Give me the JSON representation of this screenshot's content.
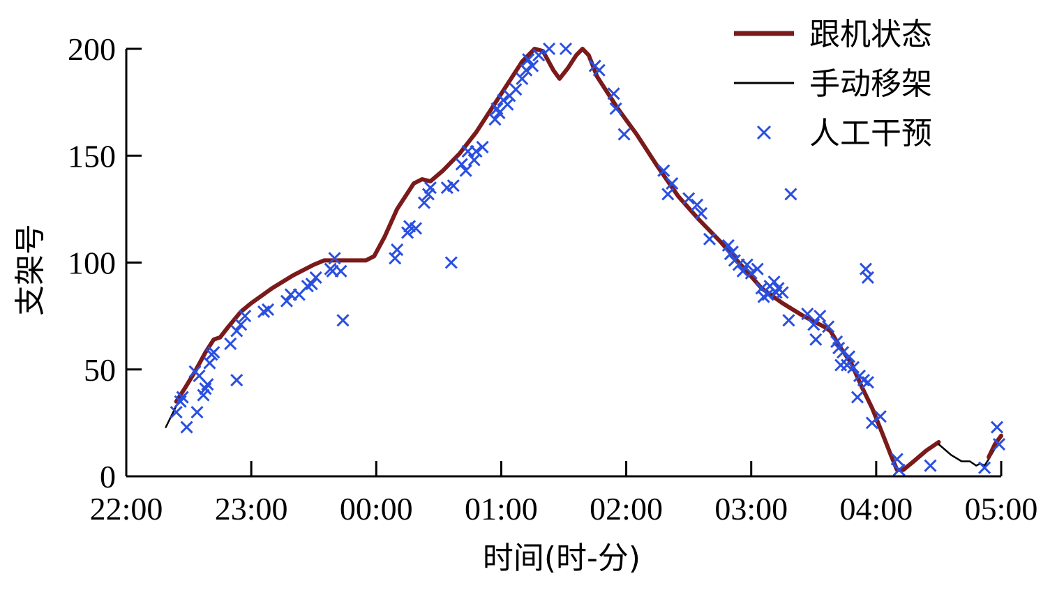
{
  "chart_data": {
    "type": "line",
    "xlabel": "时间(时-分)",
    "ylabel": "支架号",
    "xlim": [
      0,
      420
    ],
    "ylim": [
      0,
      200
    ],
    "x_ticks": [
      {
        "value": 0,
        "label": "22:00"
      },
      {
        "value": 60,
        "label": "23:00"
      },
      {
        "value": 120,
        "label": "00:00"
      },
      {
        "value": 180,
        "label": "01:00"
      },
      {
        "value": 240,
        "label": "02:00"
      },
      {
        "value": 300,
        "label": "03:00"
      },
      {
        "value": 360,
        "label": "04:00"
      },
      {
        "value": 420,
        "label": "05:00"
      }
    ],
    "y_ticks": [
      0,
      50,
      100,
      150,
      200
    ],
    "legend_position": "top-right",
    "series": [
      {
        "name": "跟机状态",
        "color": "#7b1a1a",
        "style": "line",
        "points": [
          [
            24,
            35
          ],
          [
            28,
            41
          ],
          [
            33,
            49
          ],
          [
            38,
            58
          ],
          [
            42,
            64
          ],
          [
            45,
            65
          ],
          [
            49,
            70
          ],
          [
            55,
            77
          ],
          [
            60,
            81
          ],
          [
            70,
            88
          ],
          [
            80,
            94
          ],
          [
            90,
            99
          ],
          [
            95,
            101
          ],
          [
            105,
            101
          ],
          [
            110,
            101
          ],
          [
            115,
            101
          ],
          [
            119,
            103
          ],
          [
            124,
            112
          ],
          [
            130,
            125
          ],
          [
            138,
            137
          ],
          [
            142,
            139
          ],
          [
            146,
            138
          ],
          [
            152,
            143
          ],
          [
            160,
            151
          ],
          [
            168,
            161
          ],
          [
            176,
            173
          ],
          [
            184,
            185
          ],
          [
            190,
            194
          ],
          [
            196,
            200
          ],
          [
            200,
            199
          ],
          [
            205,
            190
          ],
          [
            208,
            186
          ],
          [
            212,
            191
          ],
          [
            216,
            197
          ],
          [
            219,
            200
          ],
          [
            222,
            197
          ],
          [
            226,
            187
          ],
          [
            230,
            181
          ],
          [
            236,
            172
          ],
          [
            245,
            160
          ],
          [
            255,
            145
          ],
          [
            265,
            131
          ],
          [
            275,
            120
          ],
          [
            285,
            110
          ],
          [
            295,
            99
          ],
          [
            305,
            88
          ],
          [
            315,
            81
          ],
          [
            325,
            75
          ],
          [
            335,
            70
          ],
          [
            338,
            68
          ],
          [
            343,
            60
          ],
          [
            348,
            53
          ],
          [
            353,
            42
          ],
          [
            358,
            32
          ],
          [
            363,
            20
          ],
          [
            367,
            10
          ],
          [
            370,
            3
          ],
          [
            373,
            3
          ],
          [
            378,
            7
          ],
          [
            384,
            12
          ],
          [
            390,
            16
          ]
        ]
      },
      {
        "name": "手动移架",
        "color": "#000000",
        "style": "line",
        "points": [
          [
            19,
            23
          ],
          [
            24,
            33
          ]
        ]
      },
      {
        "name": "手动移架",
        "color": "#000000",
        "style": "line",
        "points": [
          [
            390,
            15
          ],
          [
            396,
            10
          ],
          [
            401,
            7
          ],
          [
            405,
            7
          ],
          [
            408,
            5
          ],
          [
            410,
            6
          ],
          [
            412,
            5
          ],
          [
            414,
            8
          ],
          [
            417,
            13
          ],
          [
            420,
            16
          ]
        ]
      },
      {
        "name": "跟机状态",
        "color": "#7b1a1a",
        "style": "line",
        "points": [
          [
            414,
            9
          ],
          [
            417,
            15
          ],
          [
            420,
            19
          ]
        ]
      },
      {
        "name": "人工干预",
        "color": "#2a4fe0",
        "style": "marker",
        "points": [
          [
            24,
            30
          ],
          [
            26,
            35
          ],
          [
            27,
            37
          ],
          [
            29,
            23
          ],
          [
            33,
            49
          ],
          [
            34,
            30
          ],
          [
            35,
            47
          ],
          [
            37,
            38
          ],
          [
            38,
            41
          ],
          [
            39,
            43
          ],
          [
            40,
            53
          ],
          [
            41,
            57
          ],
          [
            42,
            58
          ],
          [
            53,
            45
          ],
          [
            50,
            62
          ],
          [
            53,
            68
          ],
          [
            55,
            71
          ],
          [
            57,
            75
          ],
          [
            66,
            77
          ],
          [
            68,
            78
          ],
          [
            77,
            82
          ],
          [
            79,
            85
          ],
          [
            83,
            85
          ],
          [
            87,
            89
          ],
          [
            89,
            90
          ],
          [
            91,
            93
          ],
          [
            98,
            97
          ],
          [
            99,
            96
          ],
          [
            100,
            102
          ],
          [
            103,
            96
          ],
          [
            104,
            73
          ],
          [
            129,
            102
          ],
          [
            130,
            106
          ],
          [
            135,
            114
          ],
          [
            136,
            117
          ],
          [
            139,
            116
          ],
          [
            143,
            128
          ],
          [
            145,
            132
          ],
          [
            146,
            135
          ],
          [
            154,
            135
          ],
          [
            157,
            136
          ],
          [
            156,
            100
          ],
          [
            161,
            146
          ],
          [
            163,
            143
          ],
          [
            164,
            152
          ],
          [
            167,
            148
          ],
          [
            168,
            152
          ],
          [
            171,
            154
          ],
          [
            177,
            167
          ],
          [
            178,
            172
          ],
          [
            179,
            170
          ],
          [
            181,
            176
          ],
          [
            183,
            174
          ],
          [
            184,
            178
          ],
          [
            187,
            181
          ],
          [
            190,
            186
          ],
          [
            192,
            190
          ],
          [
            193,
            195
          ],
          [
            195,
            192
          ],
          [
            198,
            197
          ],
          [
            203,
            200
          ],
          [
            211,
            200
          ],
          [
            225,
            192
          ],
          [
            227,
            190
          ],
          [
            234,
            179
          ],
          [
            235,
            172
          ],
          [
            239,
            160
          ],
          [
            258,
            143
          ],
          [
            260,
            132
          ],
          [
            262,
            137
          ],
          [
            270,
            130
          ],
          [
            274,
            127
          ],
          [
            276,
            123
          ],
          [
            280,
            111
          ],
          [
            289,
            108
          ],
          [
            291,
            105
          ],
          [
            292,
            101
          ],
          [
            290,
            104
          ],
          [
            294,
            99
          ],
          [
            296,
            96
          ],
          [
            298,
            99
          ],
          [
            300,
            95
          ],
          [
            303,
            97
          ],
          [
            305,
            88
          ],
          [
            306,
            84
          ],
          [
            308,
            85
          ],
          [
            309,
            89
          ],
          [
            311,
            91
          ],
          [
            312,
            86
          ],
          [
            313,
            88
          ],
          [
            315,
            86
          ],
          [
            319,
            132
          ],
          [
            318,
            73
          ],
          [
            327,
            76
          ],
          [
            330,
            71
          ],
          [
            333,
            75
          ],
          [
            331,
            64
          ],
          [
            337,
            70
          ],
          [
            341,
            63
          ],
          [
            342,
            60
          ],
          [
            344,
            58
          ],
          [
            343,
            52
          ],
          [
            346,
            52
          ],
          [
            347,
            56
          ],
          [
            349,
            51
          ],
          [
            352,
            47
          ],
          [
            351,
            37
          ],
          [
            354,
            45
          ],
          [
            355,
            97
          ],
          [
            356,
            93
          ],
          [
            356,
            44
          ],
          [
            358,
            25
          ],
          [
            362,
            28
          ],
          [
            370,
            8
          ],
          [
            371,
            3
          ],
          [
            386,
            5
          ],
          [
            412,
            4
          ],
          [
            418,
            23
          ],
          [
            419,
            15
          ]
        ]
      }
    ]
  },
  "legend": [
    {
      "label": "跟机状态",
      "color": "#7b1a1a",
      "kind": "thick-line"
    },
    {
      "label": "手动移架",
      "color": "#000000",
      "kind": "thin-line"
    },
    {
      "label": "人工干预",
      "color": "#2a4fe0",
      "kind": "x-marker"
    }
  ]
}
